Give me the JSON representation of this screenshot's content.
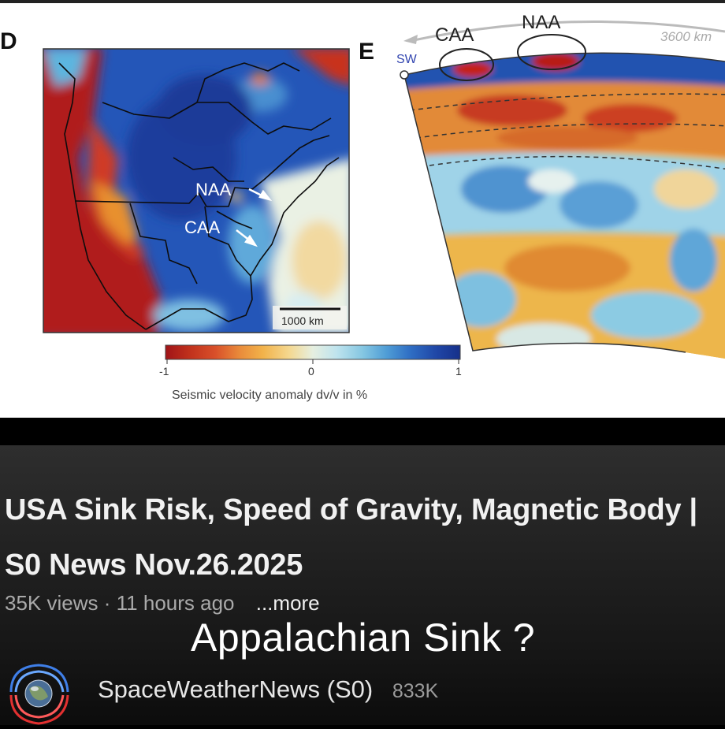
{
  "figure": {
    "panel_d_letter": "D",
    "panel_e_letter": "E",
    "map_labels": {
      "naa": "NAA",
      "caa": "CAA"
    },
    "scale_bar_label": "1000 km",
    "section_labels": {
      "caa": "CAA",
      "naa": "NAA",
      "sw": "SW",
      "distance": "3600 km"
    },
    "colorbar": {
      "min_label": "-1",
      "mid_label": "0",
      "max_label": "1",
      "title": "Seismic velocity anomaly dv/v in %",
      "colors": [
        "#a01418",
        "#c0301c",
        "#d9502a",
        "#e98a3a",
        "#f2b24a",
        "#f4d890",
        "#e6efe0",
        "#bfe4ee",
        "#84c6e2",
        "#4f9dd6",
        "#2f6ec4",
        "#1f46a6",
        "#16308a"
      ]
    }
  },
  "video": {
    "title": "USA Sink Risk, Speed of Gravity, Magnetic Body | S0 News Nov.26.2025",
    "views": "35K views",
    "separator": "·",
    "age": "11 hours ago",
    "more_label": "...more",
    "overlay_caption": "Appalachian Sink ?",
    "channel_name": "SpaceWeatherNews (S0)",
    "subscribers": "833K"
  }
}
